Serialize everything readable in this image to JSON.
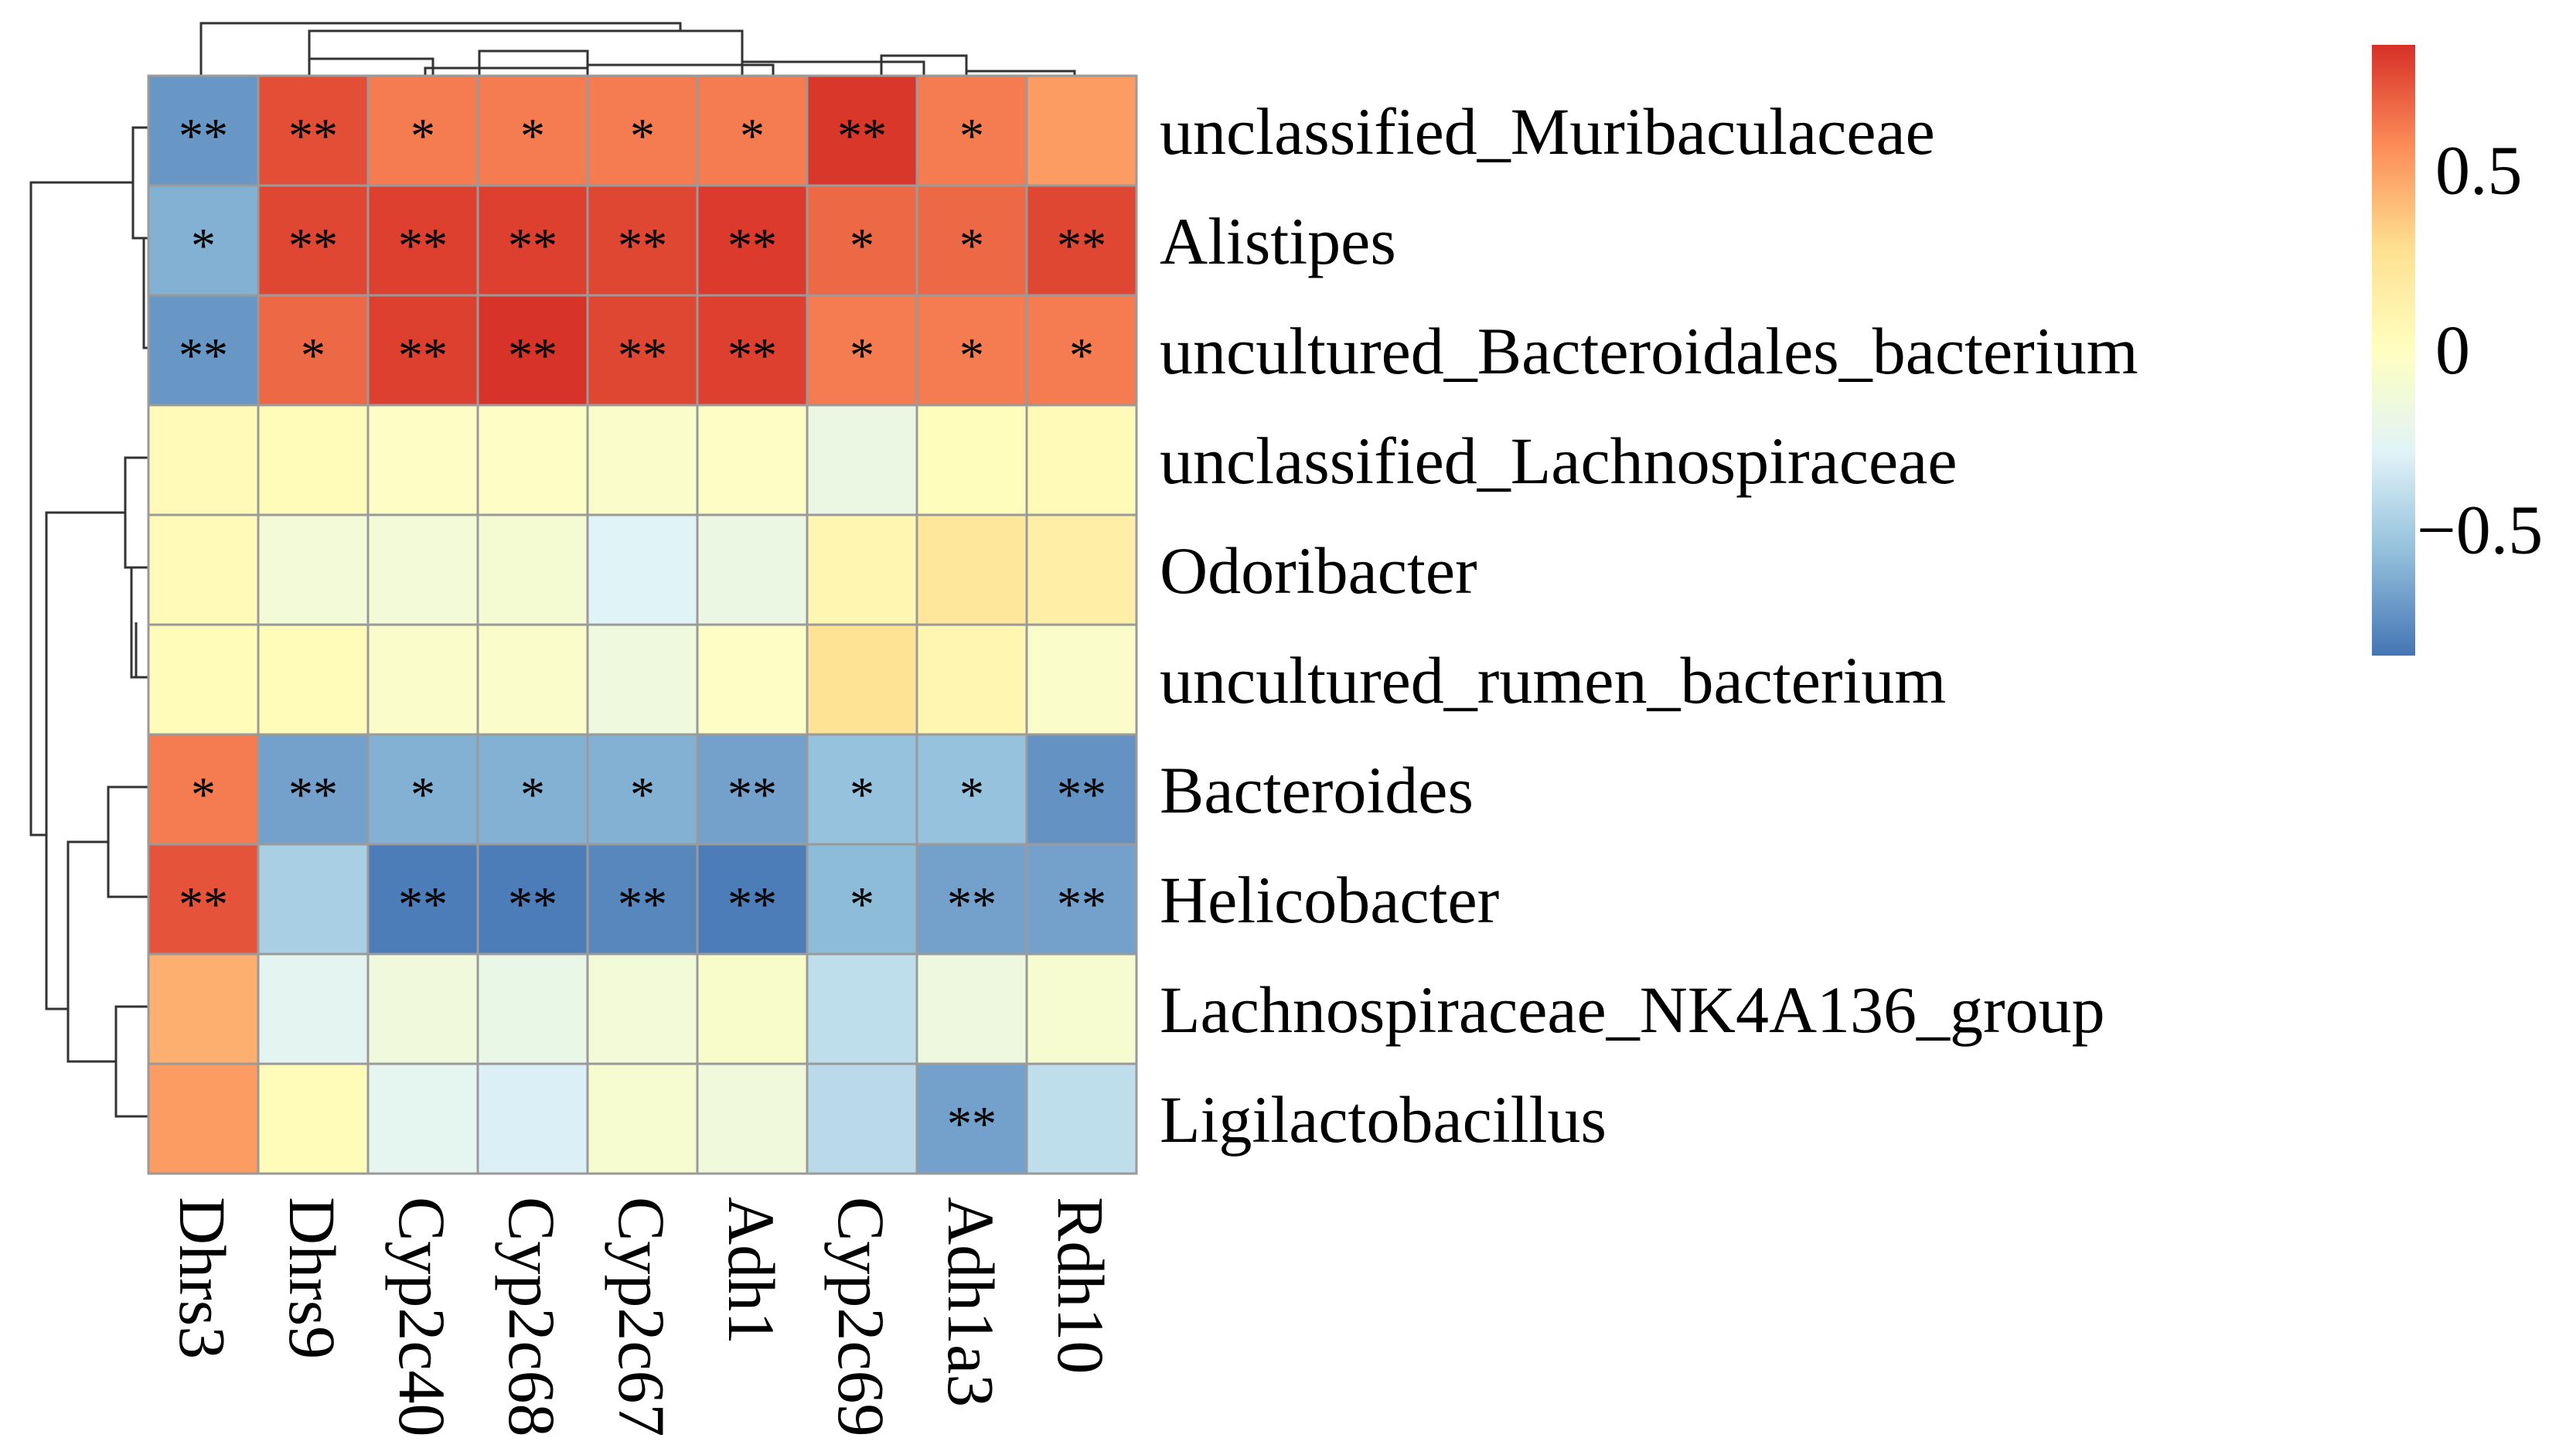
{
  "chart_data": {
    "type": "heatmap",
    "title": "",
    "rows": [
      "unclassified_Muribaculaceae",
      "Alistipes",
      "uncultured_Bacteroidales_bacterium",
      "unclassified_Lachnospiraceae",
      "Odoribacter",
      "uncultured_rumen_bacterium",
      "Bacteroides",
      "Helicobacter",
      "Lachnospiraceae_NK4A136_group",
      "Ligilactobacillus"
    ],
    "columns": [
      "Dhrs3",
      "Dhrs9",
      "Cyp2c40",
      "Cyp2c68",
      "Cyp2c67",
      "Adh1",
      "Cyp2c69",
      "Adh1a3",
      "Rdh10"
    ],
    "values": [
      [
        -0.72,
        0.76,
        0.62,
        0.62,
        0.62,
        0.62,
        0.83,
        0.62,
        0.52
      ],
      [
        -0.62,
        0.78,
        0.8,
        0.8,
        0.78,
        0.82,
        0.68,
        0.68,
        0.78
      ],
      [
        -0.72,
        0.68,
        0.8,
        0.84,
        0.78,
        0.8,
        0.62,
        0.62,
        0.62
      ],
      [
        0.05,
        0.03,
        -0.03,
        -0.03,
        -0.05,
        -0.03,
        -0.18,
        0.02,
        0.05
      ],
      [
        0.05,
        -0.12,
        -0.12,
        -0.1,
        -0.28,
        -0.18,
        0.08,
        0.22,
        0.15
      ],
      [
        0.03,
        0.04,
        -0.05,
        -0.05,
        -0.15,
        -0.03,
        0.26,
        0.08,
        -0.05
      ],
      [
        0.62,
        -0.68,
        -0.62,
        -0.62,
        -0.62,
        -0.68,
        -0.55,
        -0.55,
        -0.74
      ],
      [
        0.74,
        -0.48,
        -0.82,
        -0.82,
        -0.78,
        -0.82,
        -0.58,
        -0.68,
        -0.68
      ],
      [
        0.45,
        -0.25,
        -0.14,
        -0.2,
        -0.12,
        -0.06,
        -0.4,
        -0.16,
        -0.08
      ],
      [
        0.52,
        0.03,
        -0.24,
        -0.3,
        -0.08,
        -0.14,
        -0.42,
        -0.68,
        -0.4
      ]
    ],
    "significance": [
      [
        "**",
        "**",
        "*",
        "*",
        "*",
        "*",
        "**",
        "*",
        ""
      ],
      [
        "*",
        "**",
        "**",
        "**",
        "**",
        "**",
        "*",
        "*",
        "**"
      ],
      [
        "**",
        "*",
        "**",
        "**",
        "**",
        "**",
        "*",
        "*",
        "*"
      ],
      [
        "",
        "",
        "",
        "",
        "",
        "",
        "",
        "",
        ""
      ],
      [
        "",
        "",
        "",
        "",
        "",
        "",
        "",
        "",
        ""
      ],
      [
        "",
        "",
        "",
        "",
        "",
        "",
        "",
        "",
        ""
      ],
      [
        "*",
        "**",
        "*",
        "*",
        "*",
        "**",
        "*",
        "*",
        "**"
      ],
      [
        "**",
        "",
        "**",
        "**",
        "**",
        "**",
        "*",
        "**",
        "**"
      ],
      [
        "",
        "",
        "",
        "",
        "",
        "",
        "",
        "",
        ""
      ],
      [
        "",
        "",
        "",
        "",
        "",
        "",
        "",
        "**",
        ""
      ]
    ],
    "color_scale": {
      "min": -0.85,
      "max": 0.85,
      "stops": [
        "#4575b4",
        "#91bfdb",
        "#e0f3f8",
        "#ffffbf",
        "#fee090",
        "#fc8d59",
        "#d73027"
      ],
      "ticks": [
        "0.5",
        "0",
        "−0.5"
      ],
      "tick_values": [
        0.5,
        0,
        -0.5
      ]
    },
    "row_dendrogram": true,
    "column_dendrogram": true
  }
}
